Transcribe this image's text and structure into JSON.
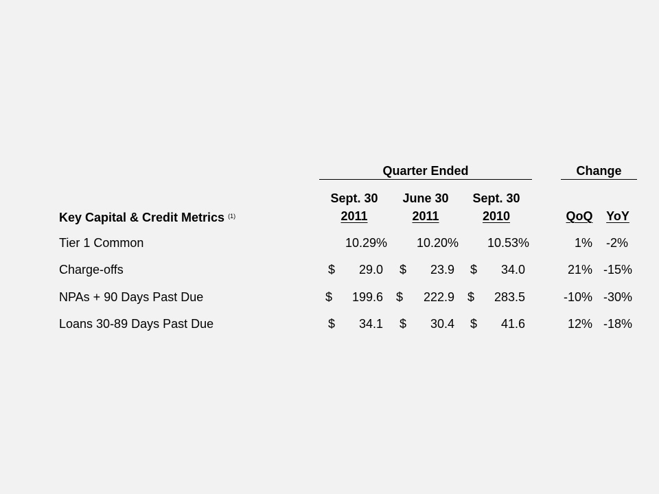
{
  "table": {
    "group_headers": {
      "quarter_ended": "Quarter Ended",
      "change": "Change"
    },
    "row_header": "Key Capital & Credit Metrics",
    "row_header_footnote": "(1)",
    "columns": [
      {
        "line1": "Sept. 30",
        "line2": "2011"
      },
      {
        "line1": "June 30",
        "line2": "2011"
      },
      {
        "line1": "Sept. 30",
        "line2": "2010"
      },
      {
        "line1": "",
        "line2": "QoQ"
      },
      {
        "line1": "",
        "line2": "YoY"
      }
    ],
    "currency_symbol": "$",
    "rows": [
      {
        "label": "Tier 1 Common",
        "has_dollar": false,
        "values": [
          "10.29%",
          "10.20%",
          "10.53%"
        ],
        "qoq": "1%",
        "yoy": "-2%"
      },
      {
        "label": "Charge-offs",
        "has_dollar": true,
        "values": [
          "29.0",
          "23.9",
          "34.0"
        ],
        "qoq": "21%",
        "yoy": "-15%"
      },
      {
        "label": "NPAs + 90 Days Past Due",
        "has_dollar": true,
        "values": [
          "199.6",
          "222.9",
          "283.5"
        ],
        "qoq": "-10%",
        "yoy": "-30%"
      },
      {
        "label": "Loans 30-89 Days Past Due",
        "has_dollar": true,
        "values": [
          "34.1",
          "30.4",
          "41.6"
        ],
        "qoq": "12%",
        "yoy": "-18%"
      }
    ]
  }
}
